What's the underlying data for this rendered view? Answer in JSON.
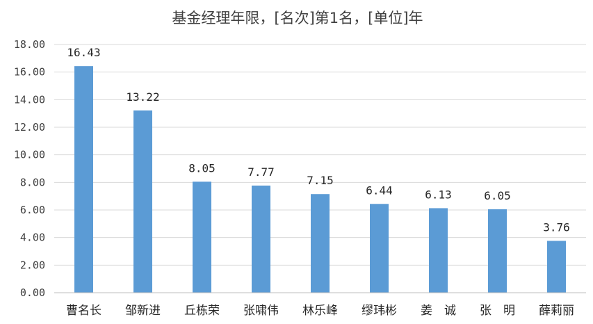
{
  "chart_data": {
    "type": "bar",
    "title": "基金经理年限，[名次]第1名，[单位]年",
    "xlabel": "",
    "ylabel": "",
    "categories": [
      "曹名长",
      "邹新进",
      "丘栋荣",
      "张啸伟",
      "林乐峰",
      "缪玮彬",
      "姜　诚",
      "张　明",
      "薛莉丽"
    ],
    "values": [
      16.43,
      13.22,
      8.05,
      7.77,
      7.15,
      6.44,
      6.13,
      6.05,
      3.76
    ],
    "value_labels": [
      "16.43",
      "13.22",
      "8.05",
      "7.77",
      "7.15",
      "6.44",
      "6.13",
      "6.05",
      "3.76"
    ],
    "y_ticks": [
      "0.00",
      "2.00",
      "4.00",
      "6.00",
      "8.00",
      "10.00",
      "12.00",
      "14.00",
      "16.00",
      "18.00"
    ],
    "ylim": [
      0,
      18
    ],
    "grid": true,
    "legend": "none",
    "bar_color": "#5b9bd5"
  }
}
